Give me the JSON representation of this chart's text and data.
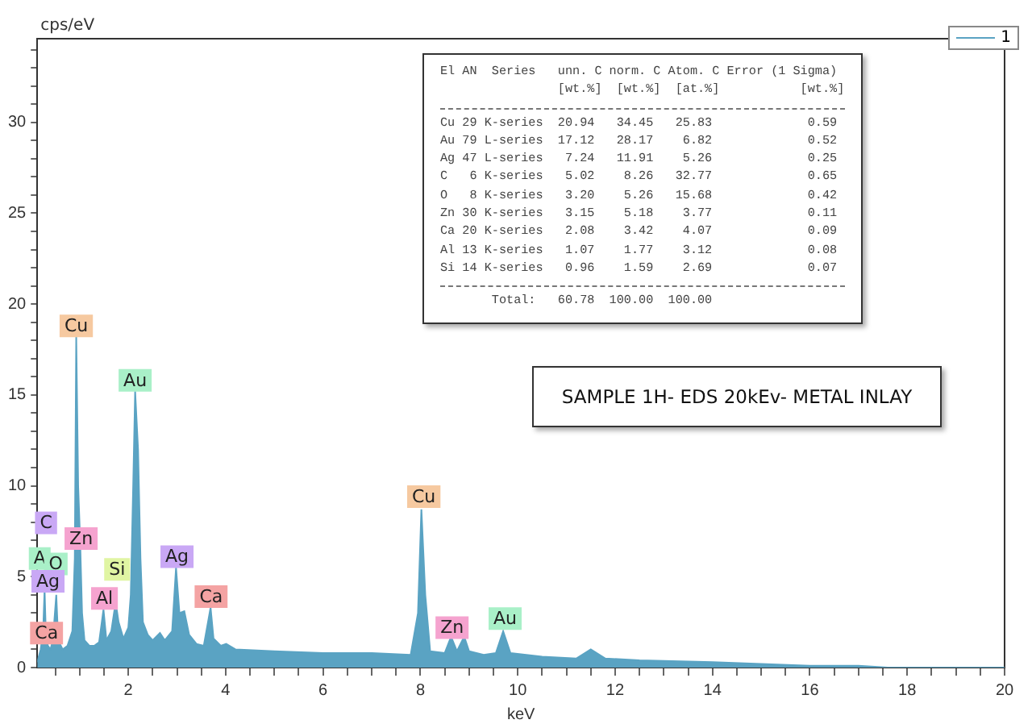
{
  "chart_data": {
    "type": "area",
    "xlabel": "keV",
    "ylabel": "cps/eV",
    "legend": "top right",
    "grid": false,
    "xlim": [
      0.13,
      20
    ],
    "ylim": [
      0,
      34.6
    ],
    "xticks": [
      {
        "value": 0.5,
        "label": null
      },
      {
        "value": 1,
        "label": null
      },
      {
        "value": 1.5,
        "label": null
      },
      2,
      {
        "value": 2.5,
        "label": null
      },
      {
        "value": 3,
        "label": null
      },
      {
        "value": 3.5,
        "label": null
      },
      4,
      {
        "value": 4.5,
        "label": null
      },
      {
        "value": 5,
        "label": null
      },
      {
        "value": 5.5,
        "label": null
      },
      6,
      {
        "value": 6.5,
        "label": null
      },
      {
        "value": 7,
        "label": null
      },
      {
        "value": 7.5,
        "label": null
      },
      8,
      {
        "value": 8.5,
        "label": null
      },
      {
        "value": 9,
        "label": null
      },
      {
        "value": 9.5,
        "label": null
      },
      10,
      {
        "value": 10.5,
        "label": null
      },
      {
        "value": 11,
        "label": null
      },
      {
        "value": 11.5,
        "label": null
      },
      12,
      {
        "value": 12.5,
        "label": null
      },
      {
        "value": 13,
        "label": null
      },
      {
        "value": 13.5,
        "label": null
      },
      14,
      {
        "value": 14.5,
        "label": null
      },
      {
        "value": 15,
        "label": null
      },
      {
        "value": 15.5,
        "label": null
      },
      16,
      {
        "value": 16.5,
        "label": null
      },
      {
        "value": 17,
        "label": null
      },
      {
        "value": 17.5,
        "label": null
      },
      18,
      {
        "value": 18.5,
        "label": null
      },
      {
        "value": 19,
        "label": null
      },
      {
        "value": 19.5,
        "label": null
      },
      20
    ],
    "yticks": [
      0,
      {
        "value": 1,
        "label": null
      },
      {
        "value": 2,
        "label": null
      },
      {
        "value": 3,
        "label": null
      },
      {
        "value": 4,
        "label": null
      },
      5,
      {
        "value": 6,
        "label": null
      },
      {
        "value": 7,
        "label": null
      },
      {
        "value": 8,
        "label": null
      },
      {
        "value": 9,
        "label": null
      },
      10,
      {
        "value": 11,
        "label": null
      },
      {
        "value": 12,
        "label": null
      },
      {
        "value": 13,
        "label": null
      },
      {
        "value": 14,
        "label": null
      },
      15,
      {
        "value": 16,
        "label": null
      },
      {
        "value": 17,
        "label": null
      },
      {
        "value": 18,
        "label": null
      },
      {
        "value": 19,
        "label": null
      },
      20,
      {
        "value": 21,
        "label": null
      },
      {
        "value": 22,
        "label": null
      },
      {
        "value": 23,
        "label": null
      },
      {
        "value": 24,
        "label": null
      },
      25,
      {
        "value": 26,
        "label": null
      },
      {
        "value": 27,
        "label": null
      },
      {
        "value": 28,
        "label": null
      },
      {
        "value": 29,
        "label": null
      },
      30,
      {
        "value": 31,
        "label": null
      },
      {
        "value": 32,
        "label": null
      },
      {
        "value": 33,
        "label": null
      },
      {
        "value": 34,
        "label": null
      }
    ],
    "x": [
      0.13,
      0.2,
      0.25,
      0.28,
      0.31,
      0.35,
      0.4,
      0.45,
      0.52,
      0.56,
      0.65,
      0.75,
      0.85,
      0.9,
      0.93,
      0.97,
      1.01,
      1.05,
      1.1,
      1.2,
      1.3,
      1.4,
      1.49,
      1.55,
      1.65,
      1.74,
      1.8,
      1.9,
      2.0,
      2.05,
      2.1,
      2.14,
      2.2,
      2.25,
      2.3,
      2.4,
      2.5,
      2.65,
      2.75,
      2.9,
      2.98,
      3.05,
      3.15,
      3.25,
      3.4,
      3.55,
      3.69,
      3.75,
      3.9,
      4.01,
      4.2,
      5,
      6,
      7,
      7.8,
      7.95,
      8.02,
      8.1,
      8.2,
      8.5,
      8.63,
      8.75,
      8.9,
      9.0,
      9.3,
      9.55,
      9.7,
      9.85,
      10.5,
      11.2,
      11.5,
      11.8,
      12.5,
      14,
      15,
      16,
      17,
      17.6,
      18,
      20
    ],
    "series": [
      {
        "name": "1",
        "color": "#5aa3c3",
        "values": [
          0.3,
          1.0,
          2.0,
          4.3,
          1.5,
          1.2,
          1.0,
          1.5,
          4.0,
          1.5,
          1.0,
          1.2,
          2.0,
          6.0,
          18.2,
          10,
          7.0,
          3.0,
          1.5,
          1.2,
          1.2,
          1.4,
          3.2,
          1.5,
          2.0,
          3.6,
          2.5,
          1.6,
          2.2,
          4.0,
          10,
          15.2,
          12,
          6,
          2.5,
          1.8,
          1.5,
          1.9,
          1.5,
          2.0,
          5.5,
          3.0,
          3.1,
          1.8,
          1.3,
          1.2,
          3.3,
          1.6,
          1.2,
          1.3,
          1.0,
          0.9,
          0.8,
          0.8,
          0.7,
          3,
          8.7,
          4,
          0.9,
          0.8,
          1.7,
          0.9,
          1.7,
          0.9,
          0.7,
          0.8,
          2.0,
          0.8,
          0.6,
          0.5,
          1.0,
          0.5,
          0.4,
          0.3,
          0.2,
          0.1,
          0.1,
          0,
          0,
          0
        ]
      }
    ],
    "annotations": [
      {
        "text": "Cu",
        "x": 0.93,
        "y": 18.8
      },
      {
        "text": "Au",
        "x": 2.14,
        "y": 15.8
      },
      {
        "text": "C",
        "x": 0.31,
        "y": 7.96
      },
      {
        "text": "A",
        "x": 0.18,
        "y": 6.0
      },
      {
        "text": "O",
        "x": 0.51,
        "y": 5.7
      },
      {
        "text": "Ag",
        "x": 0.35,
        "y": 4.75
      },
      {
        "text": "Ca",
        "x": 0.32,
        "y": 1.9
      },
      {
        "text": "Zn",
        "x": 1.03,
        "y": 7.1
      },
      {
        "text": "Si",
        "x": 1.77,
        "y": 5.4
      },
      {
        "text": "Al",
        "x": 1.51,
        "y": 3.8
      },
      {
        "text": "Ag",
        "x": 3.0,
        "y": 6.1
      },
      {
        "text": "Ca",
        "x": 3.7,
        "y": 3.9
      },
      {
        "text": "Cu",
        "x": 8.07,
        "y": 9.4
      },
      {
        "text": "Zn",
        "x": 8.65,
        "y": 2.2
      },
      {
        "text": "Au",
        "x": 9.74,
        "y": 2.7
      },
      "El AN  Series   unn. C norm. C Atom. C Error (1 Sigma)",
      "                [wt.%]  [wt.%]  [at.%]           [wt.%]",
      "Cu 29 K-series  20.94   34.45   25.83             0.59",
      "Au 79 L-series  17.12   28.17    6.82             0.52",
      "Ag 47 L-series   7.24   11.91    5.26             0.25",
      "C   6 K-series   5.02    8.26   32.77             0.65",
      "O   8 K-series   3.20    5.26   15.68             0.42",
      "Zn 30 K-series   3.15    5.18    3.77             0.11",
      "Ca 20 K-series   2.08    3.42    4.07             0.09",
      "Al 13 K-series   1.07    1.77    3.12             0.08",
      "Si 14 K-series   0.96    1.59    2.69             0.07",
      "       Total:   60.78  100.00  100.00",
      "SAMPLE 1H- EDS 20kEv- METAL INLAY"
    ]
  }
}
